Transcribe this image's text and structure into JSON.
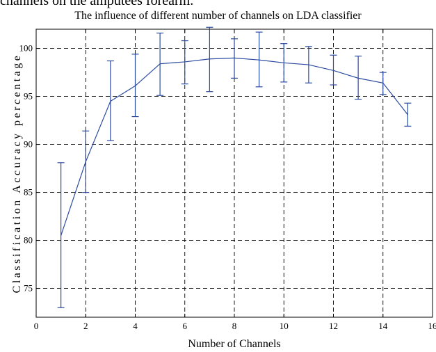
{
  "page_text": {
    "top_cut_text": "channels on the amputees forearm."
  },
  "chart_data": {
    "type": "line",
    "title": "The influence of different number of channels on LDA classifier",
    "xlabel": "Number of Channels",
    "ylabel": "Classification Accuracy percentage",
    "xlim": [
      0,
      16
    ],
    "ylim": [
      72,
      102
    ],
    "xticks": [
      0,
      2,
      4,
      6,
      8,
      10,
      12,
      14,
      16
    ],
    "yticks": [
      75,
      80,
      85,
      90,
      95,
      100
    ],
    "grid": true,
    "series": [
      {
        "x": [
          1,
          2,
          3,
          4,
          5,
          6,
          7,
          8,
          9,
          10,
          11,
          12,
          13,
          14,
          15
        ],
        "y": [
          80.5,
          88.2,
          94.5,
          96.1,
          98.4,
          98.6,
          98.9,
          99.0,
          98.8,
          98.5,
          98.3,
          97.7,
          96.9,
          96.4,
          93.1
        ],
        "err_low": [
          73.0,
          85.0,
          90.4,
          92.9,
          95.1,
          96.3,
          95.5,
          96.9,
          96.0,
          96.5,
          96.4,
          96.2,
          94.7,
          95.2,
          91.9
        ],
        "err_high": [
          88.1,
          91.4,
          98.7,
          99.4,
          101.6,
          100.8,
          102.2,
          101.0,
          101.7,
          100.5,
          100.2,
          99.3,
          99.2,
          97.5,
          94.3
        ],
        "color": "#2b4aa0"
      }
    ]
  }
}
